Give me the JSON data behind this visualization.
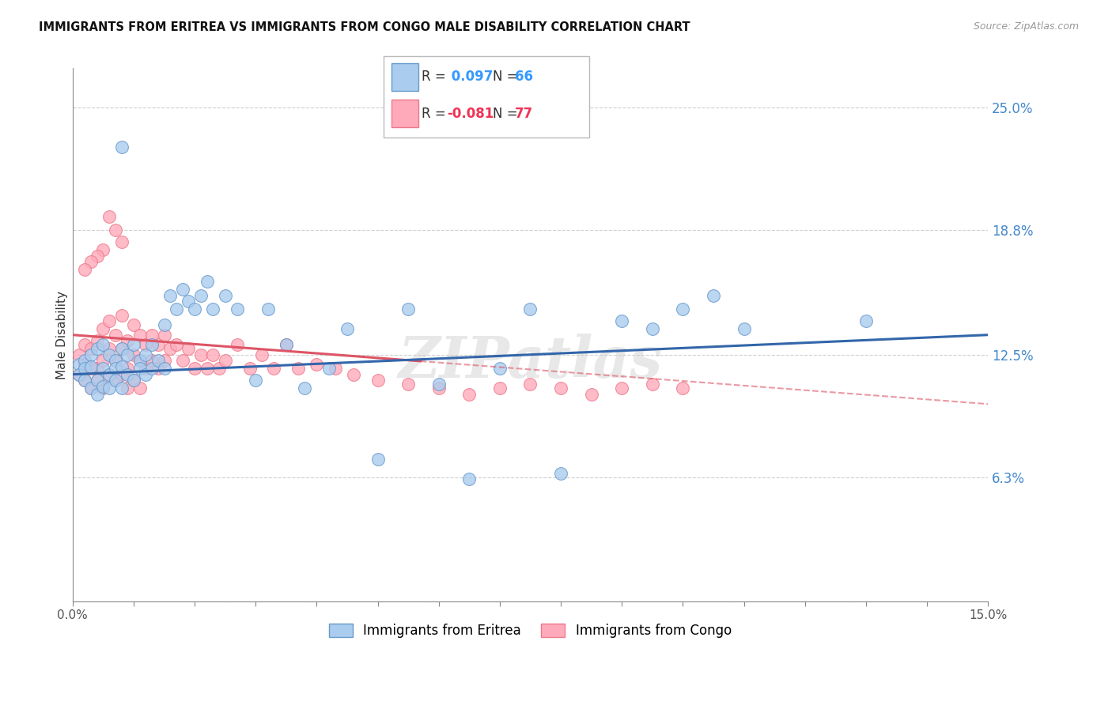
{
  "title": "IMMIGRANTS FROM ERITREA VS IMMIGRANTS FROM CONGO MALE DISABILITY CORRELATION CHART",
  "source": "Source: ZipAtlas.com",
  "ylabel": "Male Disability",
  "x_min": 0.0,
  "x_max": 0.15,
  "y_min": 0.0,
  "y_max": 0.27,
  "y_ticks": [
    0.0,
    0.063,
    0.125,
    0.188,
    0.25
  ],
  "y_tick_labels": [
    "",
    "6.3%",
    "12.5%",
    "18.8%",
    "25.0%"
  ],
  "gridline_color": "#d0d0d0",
  "background_color": "#ffffff",
  "series": [
    {
      "name": "Immigrants from Eritrea",
      "dot_color": "#aaccee",
      "edge_color": "#6699cc",
      "R": 0.097,
      "N": 66,
      "line_style": "solid",
      "line_color": "#3366aa",
      "R_text_color": "#3399ff",
      "N_text_color": "#3399ff"
    },
    {
      "name": "Immigrants from Congo",
      "dot_color": "#ffaabb",
      "edge_color": "#ee7788",
      "R": -0.081,
      "N": 77,
      "line_style": "dashed",
      "line_color": "#dd5566",
      "R_text_color": "#ee3355",
      "N_text_color": "#ee3355"
    }
  ],
  "watermark": "ZIPatlas",
  "eritrea_x": [
    0.001,
    0.001,
    0.002,
    0.002,
    0.002,
    0.003,
    0.003,
    0.003,
    0.004,
    0.004,
    0.004,
    0.005,
    0.005,
    0.005,
    0.006,
    0.006,
    0.006,
    0.007,
    0.007,
    0.007,
    0.008,
    0.008,
    0.008,
    0.009,
    0.009,
    0.01,
    0.01,
    0.011,
    0.011,
    0.012,
    0.012,
    0.013,
    0.013,
    0.014,
    0.015,
    0.015,
    0.016,
    0.017,
    0.018,
    0.019,
    0.02,
    0.021,
    0.022,
    0.023,
    0.025,
    0.027,
    0.03,
    0.032,
    0.035,
    0.038,
    0.042,
    0.045,
    0.05,
    0.055,
    0.06,
    0.065,
    0.07,
    0.075,
    0.08,
    0.09,
    0.095,
    0.1,
    0.105,
    0.11,
    0.13,
    0.008
  ],
  "eritrea_y": [
    0.12,
    0.115,
    0.122,
    0.118,
    0.112,
    0.125,
    0.119,
    0.108,
    0.128,
    0.112,
    0.105,
    0.13,
    0.118,
    0.109,
    0.125,
    0.115,
    0.108,
    0.122,
    0.118,
    0.112,
    0.128,
    0.119,
    0.108,
    0.125,
    0.115,
    0.13,
    0.112,
    0.122,
    0.118,
    0.125,
    0.115,
    0.13,
    0.118,
    0.122,
    0.14,
    0.118,
    0.155,
    0.148,
    0.158,
    0.152,
    0.148,
    0.155,
    0.162,
    0.148,
    0.155,
    0.148,
    0.112,
    0.148,
    0.13,
    0.108,
    0.118,
    0.138,
    0.072,
    0.148,
    0.11,
    0.062,
    0.118,
    0.148,
    0.065,
    0.142,
    0.138,
    0.148,
    0.155,
    0.138,
    0.142,
    0.23
  ],
  "congo_x": [
    0.001,
    0.001,
    0.002,
    0.002,
    0.002,
    0.003,
    0.003,
    0.003,
    0.004,
    0.004,
    0.004,
    0.005,
    0.005,
    0.005,
    0.006,
    0.006,
    0.006,
    0.007,
    0.007,
    0.007,
    0.008,
    0.008,
    0.008,
    0.009,
    0.009,
    0.009,
    0.01,
    0.01,
    0.01,
    0.011,
    0.011,
    0.011,
    0.012,
    0.012,
    0.013,
    0.013,
    0.014,
    0.014,
    0.015,
    0.015,
    0.016,
    0.017,
    0.018,
    0.019,
    0.02,
    0.021,
    0.022,
    0.023,
    0.024,
    0.025,
    0.027,
    0.029,
    0.031,
    0.033,
    0.035,
    0.037,
    0.04,
    0.043,
    0.046,
    0.05,
    0.055,
    0.06,
    0.065,
    0.07,
    0.075,
    0.08,
    0.085,
    0.09,
    0.095,
    0.1,
    0.006,
    0.007,
    0.008,
    0.005,
    0.004,
    0.003,
    0.002
  ],
  "congo_y": [
    0.125,
    0.115,
    0.13,
    0.12,
    0.112,
    0.128,
    0.118,
    0.108,
    0.132,
    0.118,
    0.112,
    0.138,
    0.122,
    0.108,
    0.142,
    0.128,
    0.115,
    0.135,
    0.122,
    0.112,
    0.145,
    0.128,
    0.115,
    0.132,
    0.118,
    0.108,
    0.14,
    0.125,
    0.112,
    0.135,
    0.122,
    0.108,
    0.13,
    0.118,
    0.135,
    0.122,
    0.13,
    0.118,
    0.135,
    0.122,
    0.128,
    0.13,
    0.122,
    0.128,
    0.118,
    0.125,
    0.118,
    0.125,
    0.118,
    0.122,
    0.13,
    0.118,
    0.125,
    0.118,
    0.13,
    0.118,
    0.12,
    0.118,
    0.115,
    0.112,
    0.11,
    0.108,
    0.105,
    0.108,
    0.11,
    0.108,
    0.105,
    0.108,
    0.11,
    0.108,
    0.195,
    0.188,
    0.182,
    0.178,
    0.175,
    0.172,
    0.168
  ]
}
